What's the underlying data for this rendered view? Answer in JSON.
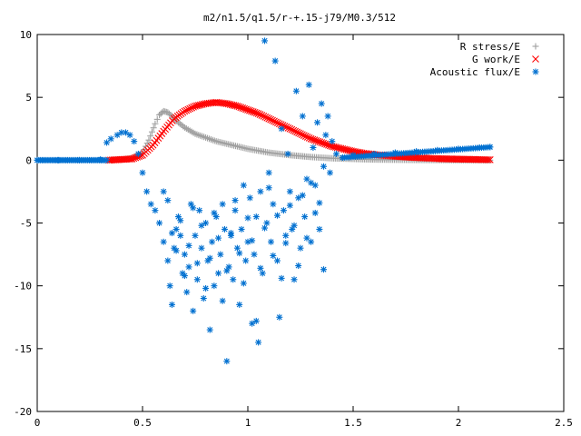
{
  "chart_data": {
    "type": "scatter",
    "title": "m2/n1.5/q1.5/r-+.15-j79/M0.3/512",
    "xlabel": "",
    "ylabel": "",
    "xlim": [
      0,
      2.5
    ],
    "ylim": [
      -20,
      10
    ],
    "xticks": [
      0,
      0.5,
      1,
      1.5,
      2,
      2.5
    ],
    "yticks": [
      10,
      5,
      0,
      -5,
      -10,
      -15,
      -20
    ],
    "xtick_labels": [
      "0",
      "0.5",
      "1",
      "1.5",
      "2",
      "2.5"
    ],
    "ytick_labels": [
      "10",
      "5",
      "0",
      "-5",
      "-10",
      "-15",
      "-20"
    ],
    "grid": false,
    "legend_position": "top-right",
    "series": [
      {
        "name": "R stress/E",
        "marker": "+",
        "color": "#a0a0a0",
        "x": [
          0.34,
          0.4,
          0.45,
          0.5,
          0.53,
          0.56,
          0.58,
          0.6,
          0.62,
          0.64,
          0.67,
          0.7,
          0.75,
          0.8,
          0.85,
          0.9,
          0.95,
          1.0,
          1.05,
          1.1,
          1.2,
          1.3,
          1.4,
          1.5,
          1.6,
          1.8,
          2.0,
          2.15
        ],
        "y": [
          0.0,
          0.05,
          0.15,
          0.6,
          1.6,
          2.9,
          3.6,
          3.9,
          3.8,
          3.5,
          3.0,
          2.6,
          2.1,
          1.8,
          1.5,
          1.3,
          1.1,
          0.9,
          0.75,
          0.6,
          0.4,
          0.25,
          0.15,
          0.1,
          0.05,
          0.02,
          0.0,
          0.0
        ]
      },
      {
        "name": "G work/E",
        "marker": "x",
        "color": "#ff0000",
        "x": [
          0.34,
          0.45,
          0.5,
          0.55,
          0.6,
          0.65,
          0.7,
          0.75,
          0.8,
          0.85,
          0.9,
          0.95,
          1.0,
          1.05,
          1.1,
          1.15,
          1.2,
          1.25,
          1.3,
          1.35,
          1.4,
          1.45,
          1.5,
          1.55,
          1.6,
          1.7,
          1.8,
          1.9,
          2.0,
          2.1,
          2.15
        ],
        "y": [
          0.0,
          0.1,
          0.4,
          1.2,
          2.3,
          3.3,
          3.9,
          4.3,
          4.5,
          4.6,
          4.5,
          4.3,
          4.0,
          3.7,
          3.3,
          2.9,
          2.5,
          2.1,
          1.7,
          1.4,
          1.1,
          0.9,
          0.7,
          0.55,
          0.45,
          0.3,
          0.2,
          0.12,
          0.08,
          0.05,
          0.03
        ]
      },
      {
        "name": "Acoustic flux/E",
        "marker": "*",
        "color": "#0070d0",
        "x": [
          0.0,
          0.1,
          0.2,
          0.3,
          0.33,
          0.35,
          0.38,
          0.4,
          0.42,
          0.44,
          0.46,
          0.48,
          0.5,
          0.52,
          0.54,
          0.56,
          0.58,
          0.6,
          0.62,
          0.63,
          0.64,
          0.65,
          0.66,
          0.67,
          0.68,
          0.69,
          0.7,
          0.71,
          0.72,
          0.73,
          0.74,
          0.75,
          0.76,
          0.77,
          0.78,
          0.79,
          0.8,
          0.81,
          0.82,
          0.83,
          0.84,
          0.85,
          0.86,
          0.87,
          0.88,
          0.89,
          0.9,
          0.91,
          0.92,
          0.93,
          0.94,
          0.95,
          0.96,
          0.97,
          0.98,
          0.99,
          1.0,
          1.01,
          1.02,
          1.03,
          1.04,
          1.05,
          1.06,
          1.07,
          1.08,
          1.09,
          1.1,
          1.11,
          1.12,
          1.13,
          1.14,
          1.15,
          1.16,
          1.17,
          1.18,
          1.19,
          1.2,
          1.21,
          1.22,
          1.23,
          1.24,
          1.25,
          1.26,
          1.27,
          1.28,
          1.29,
          1.3,
          1.31,
          1.32,
          1.33,
          1.34,
          1.35,
          1.36,
          1.37,
          1.38,
          1.39,
          1.4,
          1.42,
          1.45,
          1.5,
          1.6,
          1.7,
          1.8,
          1.9,
          2.0,
          2.1,
          2.15,
          0.6,
          0.62,
          0.64,
          0.66,
          0.68,
          0.7,
          0.72,
          0.74,
          0.76,
          0.78,
          0.8,
          0.82,
          0.84,
          0.86,
          0.88,
          0.9,
          0.92,
          0.94,
          0.96,
          0.98,
          1.0,
          1.02,
          1.04,
          1.06,
          1.08,
          1.1,
          1.12,
          1.14,
          1.16,
          1.18,
          1.2,
          1.22,
          1.24,
          1.26,
          1.28,
          1.3,
          1.32,
          1.34,
          1.36
        ],
        "y": [
          0.0,
          0.0,
          0.0,
          0.05,
          1.4,
          1.7,
          2.0,
          2.2,
          2.2,
          2.0,
          1.5,
          0.5,
          -1.0,
          -2.5,
          -3.5,
          -4.0,
          -5.0,
          -6.5,
          -8.0,
          -10.0,
          -11.5,
          -7.0,
          -5.5,
          -4.5,
          -6.0,
          -9.0,
          -7.5,
          -10.5,
          -8.5,
          -3.5,
          -12.0,
          -6.0,
          -9.5,
          -4.0,
          -7.0,
          -11.0,
          -5.0,
          -8.0,
          -13.5,
          -6.5,
          -10.0,
          -4.5,
          -9.0,
          -7.5,
          -3.5,
          -5.5,
          -16.0,
          -8.5,
          -6.0,
          -9.5,
          -4.0,
          -7.0,
          -11.5,
          -5.5,
          -2.0,
          -8.0,
          -6.5,
          -3.0,
          -13.0,
          -7.5,
          -4.5,
          -14.5,
          -2.5,
          -9.0,
          9.5,
          -5.0,
          -1.0,
          -6.5,
          -3.5,
          7.9,
          -8.0,
          -12.5,
          2.5,
          -4.0,
          -6.0,
          0.5,
          -2.5,
          -5.5,
          -9.5,
          5.5,
          -3.0,
          -7.0,
          3.5,
          -4.5,
          -1.5,
          6.0,
          -6.5,
          1.0,
          -2.0,
          3.0,
          -5.5,
          4.5,
          -0.5,
          2.0,
          3.5,
          -1.0,
          1.5,
          0.5,
          0.2,
          0.4,
          0.5,
          0.6,
          0.7,
          0.8,
          0.9,
          1.0,
          1.05,
          -2.5,
          -3.2,
          -5.8,
          -7.2,
          -4.8,
          -9.2,
          -6.8,
          -3.8,
          -8.2,
          -5.2,
          -10.2,
          -7.8,
          -4.2,
          -6.2,
          -11.2,
          -8.8,
          -5.8,
          -3.2,
          -7.4,
          -9.8,
          -4.6,
          -6.4,
          -12.8,
          -8.6,
          -5.4,
          -2.2,
          -7.6,
          -4.4,
          -9.4,
          -6.6,
          -3.6,
          -5.2,
          -8.4,
          -2.8,
          -6.2,
          -1.8,
          -4.2,
          -3.4,
          -8.7
        ]
      }
    ]
  }
}
